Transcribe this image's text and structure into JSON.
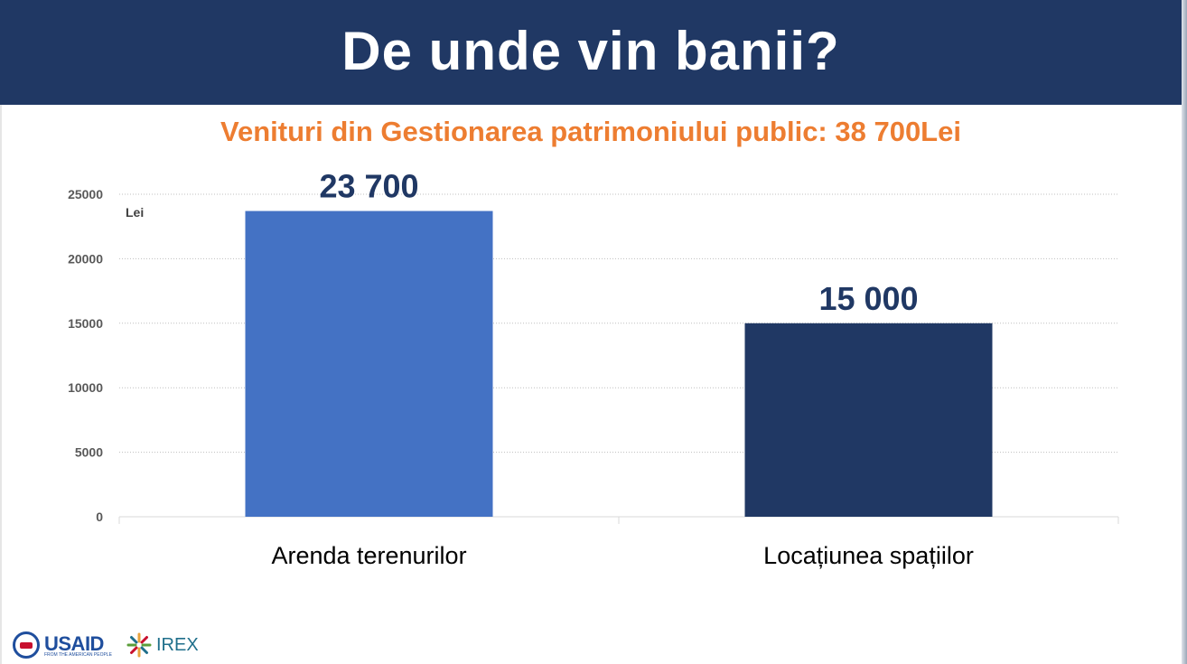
{
  "header": {
    "title": "De unde vin banii?"
  },
  "chart_data": {
    "type": "bar",
    "title": "Venituri din Gestionarea patrimoniului public: 38 700Lei",
    "ylabel": "Lei",
    "xlabel": "",
    "categories": [
      "Arenda terenurilor",
      "Locațiunea spațiilor"
    ],
    "values": [
      23700,
      15000
    ],
    "data_labels": [
      "23 700",
      "15 000"
    ],
    "ylim": [
      0,
      25000
    ],
    "yticks": [
      "0",
      "5000",
      "10000",
      "15000",
      "20000",
      "25000"
    ],
    "colors": [
      "#4472c4",
      "#203864"
    ],
    "grid": true,
    "legend": "none"
  },
  "footer": {
    "logos": [
      {
        "text": "USAID",
        "tagline": "FROM THE AMERICAN PEOPLE"
      },
      {
        "text": "IREX"
      }
    ]
  }
}
